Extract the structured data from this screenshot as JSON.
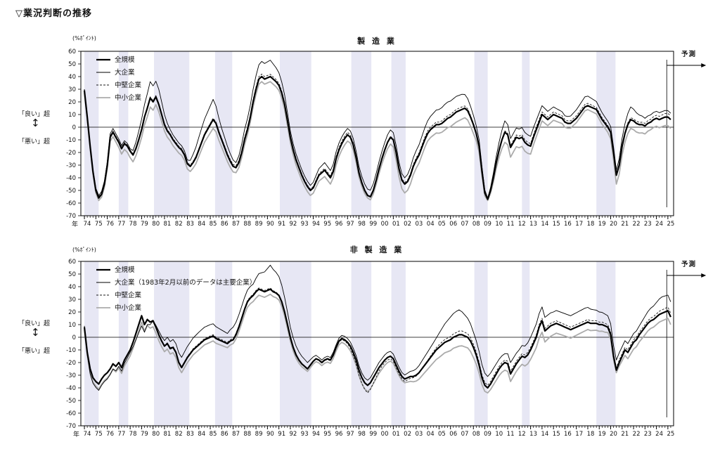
{
  "page_title": "▽業況判断の推移",
  "unit_label": "(%ﾎﾟｲﾝﾄ)",
  "year_label": "年",
  "forecast_label": "予測",
  "good_label": "「良い」超",
  "bad_label": "「悪い」超",
  "updown_arrow": "↕",
  "colors": {
    "band": "#e7e7f4",
    "all": "#000000",
    "large": "#000000",
    "medium": "#1a1a1a",
    "small": "#ababab",
    "frame": "#000000"
  },
  "axis": {
    "ymin": -70,
    "ymax": 60,
    "y_ticks": [
      60,
      50,
      40,
      30,
      20,
      10,
      0,
      -10,
      -20,
      -30,
      -40,
      -50,
      -60,
      -70
    ],
    "xmin": 1973.69,
    "xmax": 2025.5,
    "first_year": 1974,
    "last_year": 2025,
    "forecast_line_x": 2024.9,
    "year_tick_labels": [
      "74",
      "75",
      "76",
      "77",
      "78",
      "79",
      "80",
      "81",
      "82",
      "83",
      "84",
      "85",
      "86",
      "87",
      "88",
      "89",
      "90",
      "91",
      "92",
      "93",
      "94",
      "95",
      "96",
      "97",
      "98",
      "99",
      "00",
      "01",
      "02",
      "03",
      "04",
      "05",
      "06",
      "07",
      "08",
      "09",
      "10",
      "11",
      "12",
      "13",
      "14",
      "15",
      "16",
      "17",
      "18",
      "19",
      "20",
      "21",
      "22",
      "23",
      "24",
      "25"
    ]
  },
  "recession_bands": [
    [
      1974.0,
      1975.25
    ],
    [
      1977.0,
      1977.83
    ],
    [
      1980.08,
      1983.17
    ],
    [
      1985.42,
      1986.92
    ],
    [
      1991.08,
      1993.83
    ],
    [
      1997.33,
      1999.08
    ],
    [
      2000.83,
      2002.08
    ],
    [
      2008.08,
      2009.25
    ],
    [
      2012.25,
      2012.92
    ],
    [
      2018.75,
      2020.42
    ]
  ],
  "chart_data": [
    {
      "type": "line",
      "title": "製 造 業",
      "legend": [
        "全規模",
        "大企業",
        "中堅企業",
        "中小企業"
      ],
      "all_scale": {
        "x_start": 1974,
        "x_step": 0.25,
        "values": [
          29,
          8,
          -15,
          -35,
          -50,
          -56,
          -53,
          -45,
          -30,
          -8,
          -4,
          -8,
          -12,
          -17,
          -13,
          -15,
          -19,
          -22,
          -17,
          -10,
          -2,
          8,
          15,
          23,
          20,
          24,
          18,
          10,
          2,
          -3,
          -6,
          -10,
          -13,
          -16,
          -18,
          -22,
          -29,
          -31,
          -28,
          -24,
          -18,
          -12,
          -6,
          -2,
          2,
          6,
          3,
          -4,
          -10,
          -16,
          -22,
          -27,
          -31,
          -32,
          -28,
          -20,
          -10,
          -2,
          8,
          20,
          30,
          38,
          40,
          38,
          39,
          40,
          38,
          36,
          33,
          27,
          18,
          5,
          -8,
          -18,
          -26,
          -32,
          -38,
          -43,
          -47,
          -50,
          -48,
          -43,
          -38,
          -36,
          -34,
          -37,
          -40,
          -35,
          -25,
          -18,
          -13,
          -9,
          -6,
          -8,
          -14,
          -24,
          -36,
          -44,
          -50,
          -54,
          -55,
          -50,
          -42,
          -33,
          -25,
          -18,
          -12,
          -8,
          -10,
          -20,
          -33,
          -42,
          -45,
          -43,
          -38,
          -31,
          -26,
          -22,
          -16,
          -10,
          -5,
          -2,
          0,
          2,
          2,
          3,
          5,
          7,
          8,
          10,
          12,
          13,
          14,
          15,
          13,
          8,
          2,
          -5,
          -15,
          -35,
          -52,
          -57,
          -50,
          -40,
          -28,
          -18,
          -10,
          -4,
          -6,
          -16,
          -12,
          -8,
          -9,
          -8,
          -12,
          -14,
          -15,
          -8,
          -2,
          4,
          10,
          8,
          6,
          8,
          10,
          9,
          8,
          7,
          4,
          3,
          3,
          5,
          7,
          10,
          13,
          16,
          17,
          16,
          15,
          14,
          10,
          6,
          3,
          0,
          -4,
          -20,
          -38,
          -30,
          -15,
          -5,
          2,
          6,
          5,
          3,
          2,
          2,
          1,
          3,
          4,
          6,
          7,
          6,
          7,
          8,
          8,
          6
        ]
      },
      "offsets_from_all_scale": {
        "large": [
          [
            1974,
            1
          ],
          [
            1975.25,
            2
          ],
          [
            1976.5,
            3
          ],
          [
            1978,
            2
          ],
          [
            1979.75,
            13
          ],
          [
            1980.5,
            12
          ],
          [
            1981.5,
            4
          ],
          [
            1983,
            3
          ],
          [
            1984,
            10
          ],
          [
            1985.25,
            16
          ],
          [
            1986,
            9
          ],
          [
            1987.25,
            4
          ],
          [
            1988,
            8
          ],
          [
            1989.5,
            12
          ],
          [
            1990.25,
            13
          ],
          [
            1991,
            10
          ],
          [
            1992,
            5
          ],
          [
            1993.75,
            4
          ],
          [
            1995,
            6
          ],
          [
            1997,
            5
          ],
          [
            1998.75,
            5
          ],
          [
            2000.5,
            6
          ],
          [
            2002,
            5
          ],
          [
            2004,
            10
          ],
          [
            2005.5,
            13
          ],
          [
            2007,
            12
          ],
          [
            2008.5,
            5
          ],
          [
            2009.25,
            1
          ],
          [
            2010.75,
            9
          ],
          [
            2011.25,
            7
          ],
          [
            2012.75,
            8
          ],
          [
            2014,
            7
          ],
          [
            2016,
            5
          ],
          [
            2017.75,
            8
          ],
          [
            2019.5,
            5
          ],
          [
            2020.5,
            4
          ],
          [
            2021.75,
            10
          ],
          [
            2023,
            6
          ],
          [
            2025.25,
            5
          ]
        ],
        "medium": [
          [
            1974,
            1
          ],
          [
            1980,
            1
          ],
          [
            1985,
            1
          ],
          [
            1989.5,
            2
          ],
          [
            1993.75,
            1
          ],
          [
            1997,
            2
          ],
          [
            1999,
            0
          ],
          [
            2004,
            2
          ],
          [
            2007,
            2
          ],
          [
            2009.25,
            0
          ],
          [
            2012,
            2
          ],
          [
            2014,
            2
          ],
          [
            2017.75,
            2
          ],
          [
            2020.5,
            1
          ],
          [
            2023,
            2
          ],
          [
            2025.25,
            3
          ]
        ],
        "small": [
          [
            1974,
            -2
          ],
          [
            1975.25,
            -2
          ],
          [
            1977,
            -4
          ],
          [
            1979.75,
            -7
          ],
          [
            1981,
            -5
          ],
          [
            1983.25,
            -4
          ],
          [
            1985.25,
            -7
          ],
          [
            1987.25,
            -4
          ],
          [
            1989.5,
            -4
          ],
          [
            1991,
            -4
          ],
          [
            1993.75,
            -4
          ],
          [
            1995,
            -5
          ],
          [
            1997,
            -5
          ],
          [
            1998.75,
            -2
          ],
          [
            2000.5,
            -5
          ],
          [
            2002,
            -7
          ],
          [
            2004,
            -6
          ],
          [
            2006.5,
            -8
          ],
          [
            2008,
            -7
          ],
          [
            2009.25,
            -1
          ],
          [
            2010.75,
            -8
          ],
          [
            2012.5,
            -7
          ],
          [
            2014,
            -5
          ],
          [
            2016,
            -4
          ],
          [
            2017.75,
            -3
          ],
          [
            2019.75,
            -4
          ],
          [
            2020.5,
            -7
          ],
          [
            2022,
            -7
          ],
          [
            2023.5,
            -6
          ],
          [
            2025.25,
            -7
          ]
        ]
      }
    },
    {
      "type": "line",
      "title": "非 製 造 業",
      "legend": [
        "全規模",
        "大企業（1983年2月以前のデータは主要企業）",
        "中堅企業",
        "中小企業"
      ],
      "all_scale": {
        "x_start": 1974,
        "x_step": 0.25,
        "values": [
          8,
          -12,
          -25,
          -32,
          -35,
          -37,
          -33,
          -30,
          -28,
          -25,
          -21,
          -23,
          -20,
          -24,
          -18,
          -14,
          -10,
          -4,
          3,
          10,
          17,
          10,
          14,
          12,
          13,
          8,
          2,
          -3,
          -7,
          -5,
          -9,
          -8,
          -12,
          -20,
          -24,
          -20,
          -16,
          -13,
          -10,
          -8,
          -6,
          -4,
          -2,
          -1,
          0,
          1,
          -1,
          -2,
          -3,
          -4,
          -5,
          -3,
          -2,
          2,
          8,
          15,
          22,
          28,
          31,
          33,
          36,
          38,
          37,
          36,
          37,
          38,
          36,
          35,
          33,
          28,
          20,
          10,
          0,
          -8,
          -14,
          -18,
          -21,
          -23,
          -25,
          -22,
          -19,
          -17,
          -18,
          -20,
          -18,
          -17,
          -18,
          -14,
          -8,
          -3,
          -1,
          -2,
          -4,
          -7,
          -12,
          -18,
          -26,
          -32,
          -36,
          -38,
          -36,
          -32,
          -28,
          -24,
          -21,
          -18,
          -16,
          -15,
          -17,
          -22,
          -27,
          -31,
          -33,
          -32,
          -31,
          -31,
          -30,
          -28,
          -25,
          -22,
          -19,
          -16,
          -13,
          -10,
          -8,
          -6,
          -4,
          -3,
          -2,
          0,
          1,
          2,
          2,
          1,
          0,
          -3,
          -8,
          -14,
          -22,
          -32,
          -38,
          -40,
          -37,
          -33,
          -29,
          -25,
          -22,
          -20,
          -21,
          -29,
          -25,
          -21,
          -18,
          -15,
          -16,
          -14,
          -10,
          -5,
          0,
          8,
          13,
          5,
          7,
          9,
          10,
          11,
          10,
          9,
          8,
          7,
          6,
          7,
          8,
          9,
          10,
          11,
          12,
          11,
          11,
          11,
          10,
          10,
          9,
          8,
          2,
          -15,
          -26,
          -20,
          -15,
          -10,
          -12,
          -8,
          -4,
          -2,
          2,
          5,
          8,
          11,
          13,
          14,
          16,
          18,
          19,
          20,
          21,
          16
        ]
      },
      "offsets_from_all_scale": {
        "large": [
          [
            1974,
            1
          ],
          [
            1974.5,
            -4
          ],
          [
            1975.25,
            -5
          ],
          [
            1976,
            -5
          ],
          [
            1977,
            -3
          ],
          [
            1978,
            -2
          ],
          [
            1979,
            -8
          ],
          [
            1980,
            0
          ],
          [
            1980.5,
            3
          ],
          [
            1982.4,
            8
          ],
          [
            1984,
            10
          ],
          [
            1985,
            10
          ],
          [
            1986.5,
            8
          ],
          [
            1987,
            10
          ],
          [
            1988.75,
            9
          ],
          [
            1990.25,
            19
          ],
          [
            1991,
            15
          ],
          [
            1992,
            8
          ],
          [
            1993.5,
            5
          ],
          [
            1994.5,
            2
          ],
          [
            1996,
            2
          ],
          [
            1997,
            3
          ],
          [
            1998.75,
            4
          ],
          [
            2000.5,
            4
          ],
          [
            2001.9,
            3
          ],
          [
            2003,
            5
          ],
          [
            2004.7,
            9
          ],
          [
            2006,
            18
          ],
          [
            2006.7,
            20
          ],
          [
            2008,
            12
          ],
          [
            2009.25,
            9
          ],
          [
            2010.75,
            7
          ],
          [
            2011.25,
            9
          ],
          [
            2012,
            8
          ],
          [
            2013,
            10
          ],
          [
            2014,
            11
          ],
          [
            2015,
            10
          ],
          [
            2016.5,
            11
          ],
          [
            2017.75,
            12
          ],
          [
            2019,
            10
          ],
          [
            2020.5,
            8
          ],
          [
            2021.5,
            7
          ],
          [
            2022.5,
            7
          ],
          [
            2023.5,
            10
          ],
          [
            2024.5,
            13
          ],
          [
            2025.25,
            12
          ]
        ],
        "medium": [
          [
            1974,
            0
          ],
          [
            1985,
            1
          ],
          [
            1990,
            1
          ],
          [
            1993,
            0
          ],
          [
            1997,
            -1
          ],
          [
            1998.75,
            -6
          ],
          [
            2000,
            -2
          ],
          [
            2002,
            -2
          ],
          [
            2005,
            2
          ],
          [
            2007,
            3
          ],
          [
            2009.25,
            2
          ],
          [
            2012,
            2
          ],
          [
            2014,
            2
          ],
          [
            2017,
            2
          ],
          [
            2020.5,
            2
          ],
          [
            2023,
            2
          ],
          [
            2025.25,
            3
          ]
        ],
        "small": [
          [
            1974,
            -2
          ],
          [
            1975.25,
            -4
          ],
          [
            1979,
            -5
          ],
          [
            1982.4,
            -4
          ],
          [
            1985,
            -4
          ],
          [
            1987,
            -3
          ],
          [
            1989,
            -5
          ],
          [
            1990.25,
            -4
          ],
          [
            1992,
            -3
          ],
          [
            1993.5,
            -2
          ],
          [
            1996.5,
            -3
          ],
          [
            1998.75,
            -5
          ],
          [
            2000.5,
            -4
          ],
          [
            2002,
            -3
          ],
          [
            2005,
            -8
          ],
          [
            2006.75,
            -9
          ],
          [
            2008,
            -8
          ],
          [
            2009.25,
            -4
          ],
          [
            2010.75,
            -6
          ],
          [
            2012,
            -6
          ],
          [
            2014,
            -9
          ],
          [
            2016,
            -7
          ],
          [
            2017.75,
            -6
          ],
          [
            2019.5,
            -5
          ],
          [
            2020.5,
            -2
          ],
          [
            2021.5,
            -5
          ],
          [
            2023,
            -6
          ],
          [
            2024.5,
            -6
          ],
          [
            2025.25,
            -6
          ]
        ]
      }
    }
  ]
}
